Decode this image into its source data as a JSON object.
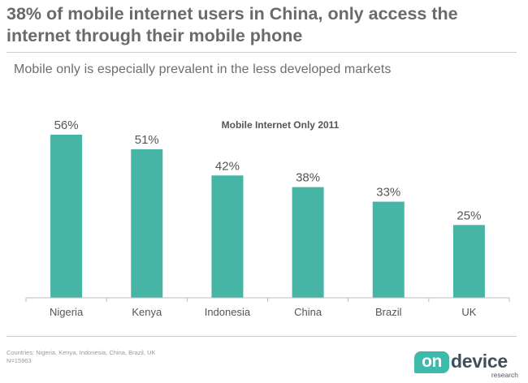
{
  "headline": "38% of mobile internet users in China, only access the internet through their mobile phone",
  "subtitle": "Mobile only is especially prevalent in the less developed markets",
  "chart_data": {
    "type": "bar",
    "title": "Mobile Internet Only 2011",
    "categories": [
      "Nigeria",
      "Kenya",
      "Indonesia",
      "China",
      "Brazil",
      "UK"
    ],
    "values": [
      56,
      51,
      42,
      38,
      33,
      25
    ],
    "value_labels": [
      "56%",
      "51%",
      "42%",
      "38%",
      "33%",
      "25%"
    ],
    "unit": "%",
    "xlabel": "",
    "ylabel": "",
    "ylim": [
      0,
      60
    ],
    "grid": false,
    "bar_color": "#47b5a5"
  },
  "footnote": {
    "line1": "Countries: Nigeria, Kenya, Indonesia, China, Brazil, UK",
    "line2": "N=15963"
  },
  "logo": {
    "part1": "on",
    "part2": "device",
    "tagline": "research"
  },
  "colors": {
    "accent": "#47b5a5",
    "brand_dark": "#3f4f5c"
  }
}
